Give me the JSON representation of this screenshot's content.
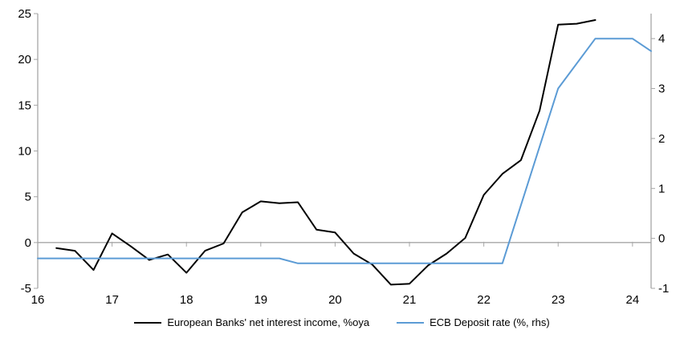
{
  "chart_data": {
    "type": "line",
    "title": "",
    "grid": "zero-line-only",
    "legend_position": "bottom-center",
    "x_axis": {
      "range": [
        16,
        24.25
      ],
      "tick_values": [
        16,
        17,
        18,
        19,
        20,
        21,
        22,
        23,
        24
      ],
      "tick_labels": [
        "16",
        "17",
        "18",
        "19",
        "20",
        "21",
        "22",
        "23",
        "24"
      ]
    },
    "left_axis": {
      "range": [
        -5,
        25
      ],
      "tick_values": [
        25,
        20,
        15,
        10,
        5,
        0,
        -5
      ],
      "tick_labels": [
        "25",
        "20",
        "15",
        "10",
        "5",
        "0",
        "-5"
      ]
    },
    "right_axis": {
      "range": [
        -1,
        4.5
      ],
      "tick_values": [
        4,
        3,
        2,
        1,
        0,
        -1
      ],
      "tick_labels": [
        "4",
        "3",
        "2",
        "1",
        "0",
        "-1"
      ]
    },
    "series": [
      {
        "name": "European Banks' net interest income, %oya",
        "axis": "left",
        "color": "#000000",
        "stroke_width": 2,
        "x": [
          16.25,
          16.5,
          16.75,
          17.0,
          17.25,
          17.5,
          17.75,
          18.0,
          18.25,
          18.5,
          18.75,
          19.0,
          19.25,
          19.5,
          19.75,
          20.0,
          20.25,
          20.5,
          20.75,
          21.0,
          21.25,
          21.5,
          21.75,
          22.0,
          22.25,
          22.5,
          22.75,
          23.0,
          23.25,
          23.5
        ],
        "values": [
          -0.6,
          -0.9,
          -3.0,
          1.0,
          -0.4,
          -1.9,
          -1.3,
          -3.3,
          -0.9,
          -0.1,
          3.3,
          4.5,
          4.3,
          4.4,
          1.4,
          1.1,
          -1.2,
          -2.4,
          -4.6,
          -4.5,
          -2.5,
          -1.2,
          0.5,
          5.2,
          7.5,
          9.0,
          14.4,
          23.8,
          23.9,
          24.3
        ]
      },
      {
        "name": "ECB Deposit rate (%, rhs)",
        "axis": "right",
        "color": "#5B9BD5",
        "stroke_width": 2,
        "x": [
          16.0,
          19.25,
          19.5,
          22.25,
          23.0,
          23.5,
          24.0,
          24.25
        ],
        "values": [
          -0.4,
          -0.4,
          -0.5,
          -0.5,
          3.0,
          4.0,
          4.0,
          3.75
        ]
      }
    ]
  },
  "legend": {
    "items": [
      {
        "label": "European Banks' net interest income, %oya",
        "color": "#000000"
      },
      {
        "label": "ECB Deposit rate (%, rhs)",
        "color": "#5B9BD5"
      }
    ]
  },
  "colors": {
    "background": "#FFFFFF",
    "axis_line": "#A6A6A6",
    "zero_line": "#A6A6A6",
    "tick_text": "#000000",
    "nii_line": "#000000",
    "ecb_line": "#5B9BD5"
  }
}
